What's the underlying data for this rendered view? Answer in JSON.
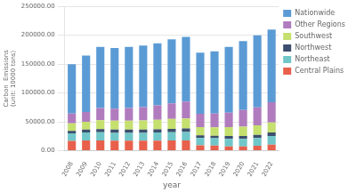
{
  "chart_data": {
    "type": "bar",
    "stacked": true,
    "xlabel": "year",
    "ylabel": "Carbon  Emissions\n(unit: 10000 tons)",
    "categories": [
      "2008",
      "2009",
      "2010",
      "2011",
      "2012",
      "2013",
      "2014",
      "2015",
      "2016",
      "2017",
      "2018",
      "2019",
      "2020",
      "2021",
      "2022"
    ],
    "series": [
      {
        "name": "Central Plains",
        "color": "#e8604c",
        "values": [
          17000,
          18000,
          18000,
          17500,
          17500,
          17500,
          17500,
          18000,
          18000,
          9500,
          9000,
          7500,
          7500,
          8500,
          10500
        ]
      },
      {
        "name": "Northeast",
        "color": "#70c6c8",
        "values": [
          13000,
          13500,
          14000,
          13500,
          13500,
          13500,
          14000,
          14000,
          14500,
          12500,
          12500,
          13000,
          13000,
          13500,
          15000
        ]
      },
      {
        "name": "Northwest",
        "color": "#3c4f6e",
        "values": [
          4500,
          5000,
          5500,
          5500,
          5500,
          5500,
          5500,
          6000,
          6000,
          4500,
          4500,
          5000,
          5000,
          5500,
          6000
        ]
      },
      {
        "name": "Southwest",
        "color": "#c5e06e",
        "values": [
          13000,
          13500,
          15500,
          15500,
          15500,
          16000,
          16500,
          17000,
          17500,
          14500,
          14500,
          15500,
          16000,
          16500,
          17500
        ]
      },
      {
        "name": "Other Regions",
        "color": "#b07cbe",
        "values": [
          17000,
          17000,
          21000,
          21000,
          22000,
          23000,
          25000,
          27000,
          29000,
          23000,
          24000,
          25000,
          29000,
          31000,
          35000
        ]
      },
      {
        "name": "Nationwide",
        "color": "#5b9bd5",
        "values": [
          85500,
          98000,
          106000,
          105000,
          106000,
          106500,
          107500,
          111000,
          112000,
          106000,
          107500,
          114000,
          119500,
          125000,
          126000
        ]
      }
    ],
    "ylim": [
      0,
      250000
    ],
    "yticks": [
      {
        "value": 0,
        "label": "0.00"
      },
      {
        "value": 50000,
        "label": "50000.00"
      },
      {
        "value": 100000,
        "label": "100000.00"
      },
      {
        "value": 150000,
        "label": "150000.00"
      },
      {
        "value": 200000,
        "label": "200000.00"
      },
      {
        "value": 250000,
        "label": "250000.00"
      }
    ],
    "grid": true,
    "legend": "right"
  }
}
